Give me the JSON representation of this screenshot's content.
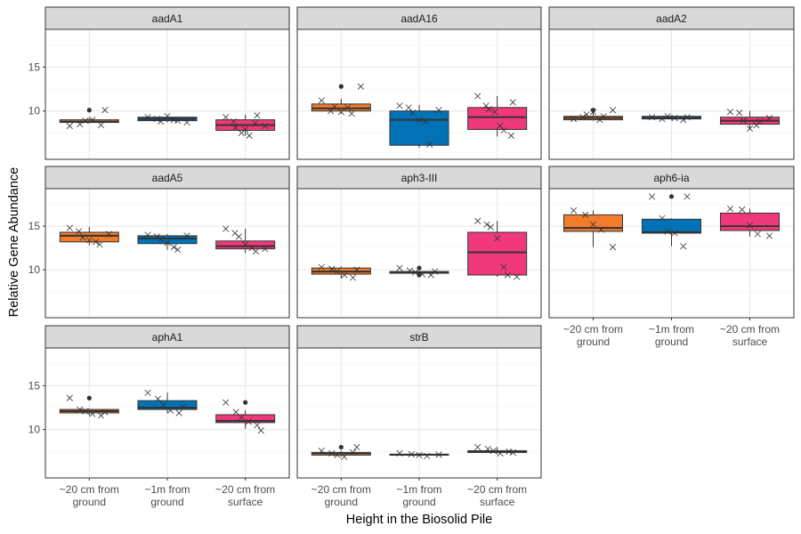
{
  "chart_data": {
    "type": "box",
    "xlabel": "Height in the Biosolid Pile",
    "ylabel": "Relative Gene Abundance",
    "ylim": [
      4.5,
      19.3
    ],
    "yticks": [
      10,
      15
    ],
    "categories": [
      [
        "~20 cm from",
        "ground"
      ],
      [
        "~1m from",
        "ground"
      ],
      [
        "~20 cm from",
        "surface"
      ]
    ],
    "category_colors": [
      "#f07c2c",
      "#0272b7",
      "#f0397a"
    ],
    "grid": true,
    "facets": [
      {
        "name": "aadA1",
        "boxes": [
          {
            "q1": 8.7,
            "median": 8.8,
            "q3": 9.0,
            "whisker_low": 8.6,
            "whisker_high": 9.2,
            "outliers": [
              10.1
            ],
            "points": [
              8.3,
              8.5,
              8.9,
              9.0,
              8.4,
              10.1
            ]
          },
          {
            "q1": 8.9,
            "median": 9.1,
            "q3": 9.3,
            "whisker_low": 8.7,
            "whisker_high": 9.5,
            "outliers": [],
            "points": [
              9.3,
              9.1,
              8.8,
              9.4,
              9.0,
              8.9,
              8.7
            ]
          },
          {
            "q1": 7.8,
            "median": 8.4,
            "q3": 9.0,
            "whisker_low": 7.2,
            "whisker_high": 9.6,
            "outliers": [],
            "points": [
              9.3,
              8.8,
              8.1,
              7.5,
              7.9,
              7.2,
              8.6,
              9.5,
              8.3
            ]
          }
        ]
      },
      {
        "name": "aadA16",
        "boxes": [
          {
            "q1": 10.0,
            "median": 10.3,
            "q3": 10.8,
            "whisker_low": 9.7,
            "whisker_high": 11.4,
            "outliers": [
              12.8
            ],
            "points": [
              11.2,
              10.0,
              10.5,
              9.9,
              10.4,
              9.7,
              12.8
            ]
          },
          {
            "q1": 6.1,
            "median": 9.0,
            "q3": 10.0,
            "whisker_low": 5.8,
            "whisker_high": 10.7,
            "outliers": [],
            "points": [
              10.6,
              10.4,
              9.8,
              9.0,
              8.8,
              6.2,
              10.1
            ]
          },
          {
            "q1": 7.9,
            "median": 9.3,
            "q3": 10.4,
            "whisker_low": 7.1,
            "whisker_high": 11.7,
            "outliers": [],
            "points": [
              11.7,
              10.6,
              10.2,
              9.9,
              8.3,
              7.8,
              7.2,
              11.0
            ]
          }
        ]
      },
      {
        "name": "aadA2",
        "boxes": [
          {
            "q1": 9.0,
            "median": 9.2,
            "q3": 9.4,
            "whisker_low": 8.9,
            "whisker_high": 9.9,
            "outliers": [
              10.1
            ],
            "points": [
              9.1,
              9.3,
              9.6,
              9.9,
              9.0,
              9.4,
              10.1
            ]
          },
          {
            "q1": 9.1,
            "median": 9.2,
            "q3": 9.4,
            "whisker_low": 9.0,
            "whisker_high": 9.5,
            "outliers": [],
            "points": [
              9.3,
              9.1,
              9.4,
              9.2,
              9.0,
              9.3
            ]
          },
          {
            "q1": 8.5,
            "median": 8.9,
            "q3": 9.3,
            "whisker_low": 7.9,
            "whisker_high": 10.0,
            "outliers": [],
            "points": [
              9.9,
              9.8,
              8.9,
              8.0,
              8.4,
              8.8,
              9.2
            ]
          }
        ]
      },
      {
        "name": "aadA5",
        "boxes": [
          {
            "q1": 13.2,
            "median": 13.9,
            "q3": 14.3,
            "whisker_low": 12.8,
            "whisker_high": 14.9,
            "outliers": [],
            "points": [
              14.8,
              14.4,
              13.7,
              13.4,
              13.2,
              12.9,
              14.1
            ]
          },
          {
            "q1": 13.0,
            "median": 13.6,
            "q3": 13.9,
            "whisker_low": 12.3,
            "whisker_high": 14.1,
            "outliers": [],
            "points": [
              14.0,
              13.8,
              13.5,
              13.1,
              12.6,
              12.3,
              13.9
            ]
          },
          {
            "q1": 12.4,
            "median": 12.7,
            "q3": 13.3,
            "whisker_low": 11.9,
            "whisker_high": 14.7,
            "outliers": [],
            "points": [
              14.7,
              14.2,
              13.8,
              12.9,
              12.5,
              12.1,
              12.4
            ]
          }
        ]
      },
      {
        "name": "aph3-III",
        "boxes": [
          {
            "q1": 9.5,
            "median": 9.8,
            "q3": 10.2,
            "whisker_low": 9.0,
            "whisker_high": 10.4,
            "outliers": [],
            "points": [
              10.3,
              10.1,
              9.8,
              9.4,
              9.1,
              10.0
            ]
          },
          {
            "q1": 9.6,
            "median": 9.7,
            "q3": 9.8,
            "whisker_low": 9.6,
            "whisker_high": 9.8,
            "outliers": [
              9.4,
              10.2
            ],
            "points": [
              10.2,
              9.9,
              9.7,
              9.5,
              9.4,
              9.8
            ]
          },
          {
            "q1": 9.4,
            "median": 12.0,
            "q3": 14.3,
            "whisker_low": 9.2,
            "whisker_high": 15.6,
            "outliers": [],
            "points": [
              15.6,
              15.2,
              14.9,
              13.6,
              10.3,
              9.4,
              9.2
            ]
          }
        ]
      },
      {
        "name": "aph6-ia",
        "boxes": [
          {
            "q1": 14.4,
            "median": 14.8,
            "q3": 16.3,
            "whisker_low": 12.6,
            "whisker_high": 16.8,
            "outliers": [],
            "points": [
              16.8,
              16.3,
              15.2,
              14.6,
              12.6
            ]
          },
          {
            "q1": 14.2,
            "median": 14.3,
            "q3": 15.8,
            "whisker_low": 12.7,
            "whisker_high": 15.9,
            "outliers": [
              18.4
            ],
            "points": [
              18.4,
              15.9,
              14.4,
              14.2,
              12.7,
              18.4
            ]
          },
          {
            "q1": 14.5,
            "median": 15.0,
            "q3": 16.5,
            "whisker_low": 13.8,
            "whisker_high": 17.0,
            "outliers": [],
            "points": [
              17.0,
              16.9,
              15.1,
              14.1,
              13.9
            ]
          }
        ]
      },
      {
        "name": "aphA1",
        "boxes": [
          {
            "q1": 11.9,
            "median": 12.1,
            "q3": 12.3,
            "whisker_low": 11.6,
            "whisker_high": 12.4,
            "outliers": [
              13.6
            ],
            "points": [
              13.6,
              12.3,
              12.1,
              11.8,
              11.6,
              12.0
            ]
          },
          {
            "q1": 12.3,
            "median": 12.5,
            "q3": 13.3,
            "whisker_low": 11.9,
            "whisker_high": 14.2,
            "outliers": [],
            "points": [
              14.2,
              13.5,
              12.8,
              12.2,
              11.9,
              12.6
            ]
          },
          {
            "q1": 10.8,
            "median": 11.0,
            "q3": 11.7,
            "whisker_low": 10.1,
            "whisker_high": 12.2,
            "outliers": [
              13.1
            ],
            "points": [
              13.1,
              12.0,
              11.4,
              10.9,
              10.5,
              9.9
            ]
          }
        ]
      },
      {
        "name": "strB",
        "boxes": [
          {
            "q1": 7.1,
            "median": 7.3,
            "q3": 7.4,
            "whisker_low": 6.9,
            "whisker_high": 7.6,
            "outliers": [
              8.0
            ],
            "points": [
              7.6,
              7.3,
              7.1,
              6.9,
              7.4,
              8.0
            ]
          },
          {
            "q1": 7.1,
            "median": 7.15,
            "q3": 7.2,
            "whisker_low": 7.0,
            "whisker_high": 7.3,
            "outliers": [],
            "points": [
              7.3,
              7.2,
              7.1,
              7.0,
              7.15
            ]
          },
          {
            "q1": 7.4,
            "median": 7.5,
            "q3": 7.6,
            "whisker_low": 7.2,
            "whisker_high": 8.0,
            "outliers": [],
            "points": [
              8.0,
              7.8,
              7.6,
              7.3,
              7.5,
              7.4
            ]
          }
        ]
      }
    ]
  }
}
